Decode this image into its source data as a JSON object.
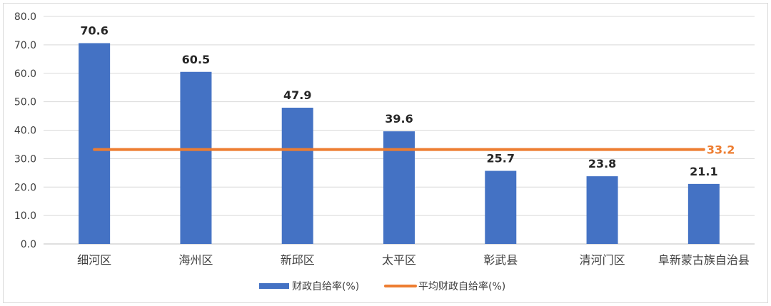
{
  "chart_data": {
    "type": "bar",
    "categories": [
      "细河区",
      "海州区",
      "新邱区",
      "太平区",
      "彰武县",
      "清河门区",
      "阜新蒙古族自治县"
    ],
    "series": [
      {
        "name": "财政自给率(%)",
        "type": "bar",
        "values": [
          70.6,
          60.5,
          47.9,
          39.6,
          25.7,
          23.8,
          21.1
        ],
        "color": "#4472c4"
      },
      {
        "name": "平均财政自给率(%)",
        "type": "line",
        "value": 33.2,
        "label": "33.2",
        "color": "#ed7d31"
      }
    ],
    "data_labels": [
      "70.6",
      "60.5",
      "47.9",
      "39.6",
      "25.7",
      "23.8",
      "21.1"
    ],
    "ylim": [
      0,
      80
    ],
    "yticks": [
      "0.0",
      "10.0",
      "20.0",
      "30.0",
      "40.0",
      "50.0",
      "60.0",
      "70.0",
      "80.0"
    ],
    "grid": true,
    "legend_position": "bottom",
    "title": "",
    "xlabel": "",
    "ylabel": ""
  }
}
